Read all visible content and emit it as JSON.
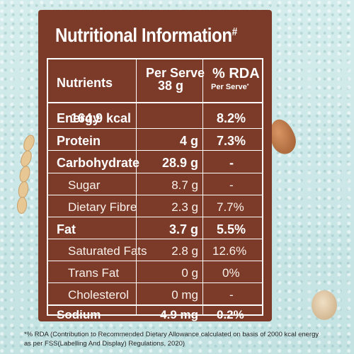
{
  "title": {
    "text": "Nutritional Information",
    "mark": "#"
  },
  "columns": {
    "nutrient": "Nutrients",
    "per_serve_line1": "Per Serve",
    "per_serve_line2": "38 g",
    "rda_line1": "% RDA",
    "rda_line2": "Per Serve",
    "rda_mark": "*"
  },
  "rows": [
    {
      "name": "Energy",
      "per_serve": "164.9 kcal",
      "rda": "8.2%"
    },
    {
      "name": "Protein",
      "per_serve": "4 g",
      "rda": "7.3%"
    },
    {
      "name": "Carbohydrate",
      "per_serve": "28.9 g",
      "rda": "-"
    },
    {
      "name": "Sugar",
      "per_serve": "8.7 g",
      "rda": "-"
    },
    {
      "name": "Dietary Fibre",
      "per_serve": "2.3 g",
      "rda": "7.7%"
    },
    {
      "name": "Fat",
      "per_serve": "3.7 g",
      "rda": "5.5%"
    },
    {
      "name": "Saturated Fats",
      "per_serve": "2.8 g",
      "rda": "12.6%"
    },
    {
      "name": "Trans Fat",
      "per_serve": "0 g",
      "rda": "0%"
    },
    {
      "name": "Cholesterol",
      "per_serve": "0 mg",
      "rda": "-"
    },
    {
      "name": "Sodium",
      "per_serve": "4.9 mg",
      "rda": "0.2%"
    }
  ],
  "footnote": {
    "line1": "*% RDA (Contribution to Recommended Dietary Allowance calculated on basis of 2000 kcal energy",
    "line2": "as per FSS(Labelling And Display) Regulations, 2020)"
  },
  "colors": {
    "panel": "#7b3b28",
    "background": "#c9e6e6",
    "text": "#ffffff"
  }
}
